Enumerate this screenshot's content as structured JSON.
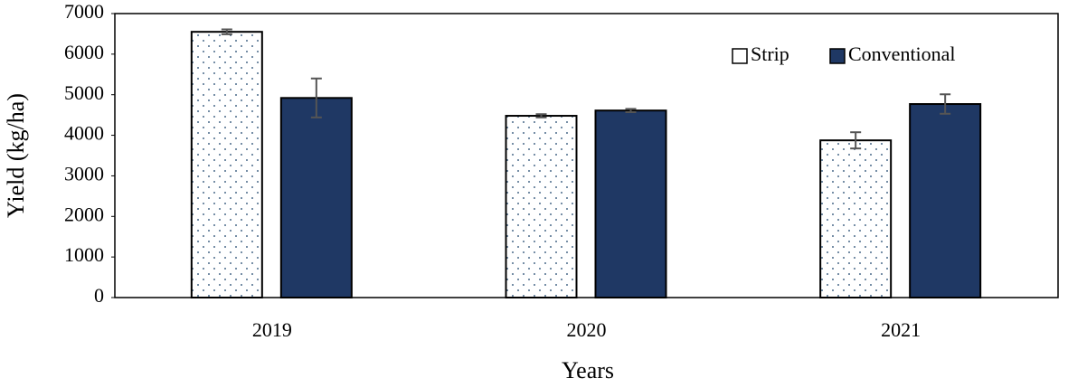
{
  "chart_data": {
    "type": "bar",
    "x_label": "Years",
    "y_label": "Yield (kg/ha)",
    "categories": [
      "2019",
      "2020",
      "2021"
    ],
    "series": [
      {
        "name": "Strip",
        "color": "#ffffff",
        "values": [
          6550,
          4480,
          3875
        ],
        "errors": [
          60,
          40,
          200
        ]
      },
      {
        "name": "Conventional",
        "color": "#1f3864",
        "values": [
          4920,
          4610,
          4770
        ],
        "errors": [
          480,
          40,
          240
        ]
      }
    ],
    "ylim": [
      0,
      7000
    ],
    "yticks": [
      0,
      1000,
      2000,
      3000,
      4000,
      5000,
      6000,
      7000
    ],
    "grid": false,
    "legend": "upper right"
  }
}
